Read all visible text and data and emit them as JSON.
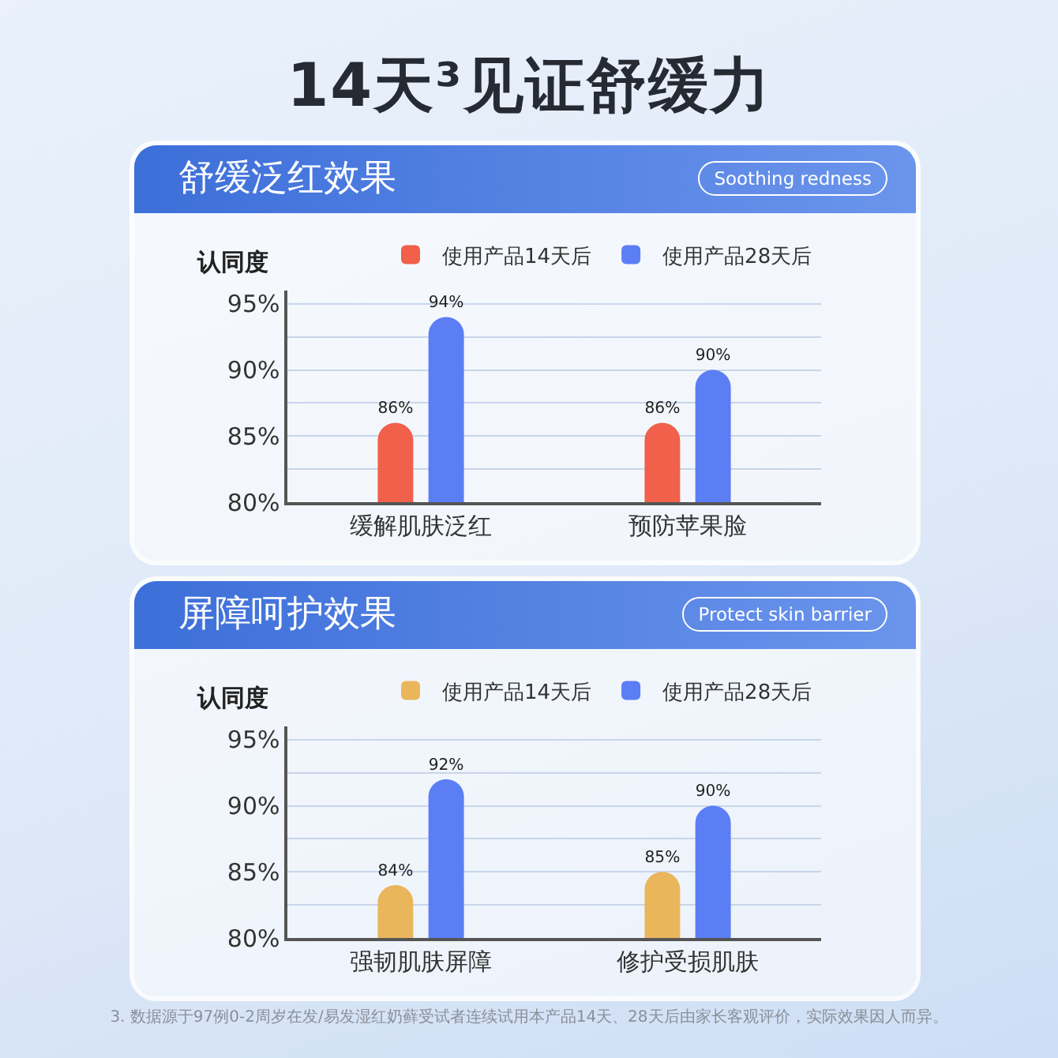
{
  "chart_data": [
    {
      "type": "bar",
      "title": "舒缓泛红效果",
      "subtitle": "Soothing redness",
      "ylabel": "认同度",
      "annotations": [
        "14天³见证舒缓力"
      ],
      "categories": [
        "缓解肌肤泛红",
        "预防苹果脸"
      ],
      "series": [
        {
          "name": "使用产品14天后",
          "color": "#f0604a",
          "values": [
            86,
            86
          ],
          "value_labels": [
            "86%",
            "86%"
          ]
        },
        {
          "name": "使用产品28天后",
          "color": "#5b7ef5",
          "values": [
            94,
            90
          ],
          "value_labels": [
            "94%",
            "90%"
          ]
        }
      ],
      "ylim": [
        80,
        96
      ],
      "yticks": [
        {
          "value": 80,
          "label": "80%"
        },
        {
          "value": 82.5,
          "label": null
        },
        {
          "value": 85,
          "label": "85%"
        },
        {
          "value": 87.5,
          "label": null
        },
        {
          "value": 90,
          "label": "90%"
        },
        {
          "value": 92.5,
          "label": null
        },
        {
          "value": 95,
          "label": "95%"
        }
      ],
      "grid": "y",
      "legend": "top right"
    },
    {
      "type": "bar",
      "title": "屏障呵护效果",
      "subtitle": "Protect skin barrier",
      "ylabel": "认同度",
      "annotations": [
        "3. 数据源于97例0-2周岁在发/易发湿红奶藓受试者连续试用本产品14天、28天后由家长客观评价，实际效果因人而异。"
      ],
      "categories": [
        "强韧肌肤屏障",
        "修护受损肌肤"
      ],
      "series": [
        {
          "name": "使用产品14天后",
          "color": "#eab65c",
          "values": [
            84,
            85
          ],
          "value_labels": [
            "84%",
            "85%"
          ]
        },
        {
          "name": "使用产品28天后",
          "color": "#5b7ef5",
          "values": [
            92,
            90
          ],
          "value_labels": [
            "92%",
            "90%"
          ]
        }
      ],
      "ylim": [
        80,
        96
      ],
      "yticks": [
        {
          "value": 80,
          "label": "80%"
        },
        {
          "value": 82.5,
          "label": null
        },
        {
          "value": 85,
          "label": "85%"
        },
        {
          "value": 87.5,
          "label": null
        },
        {
          "value": 90,
          "label": "90%"
        },
        {
          "value": 92.5,
          "label": null
        },
        {
          "value": 95,
          "label": "95%"
        }
      ],
      "grid": "y",
      "legend": "top right"
    }
  ]
}
